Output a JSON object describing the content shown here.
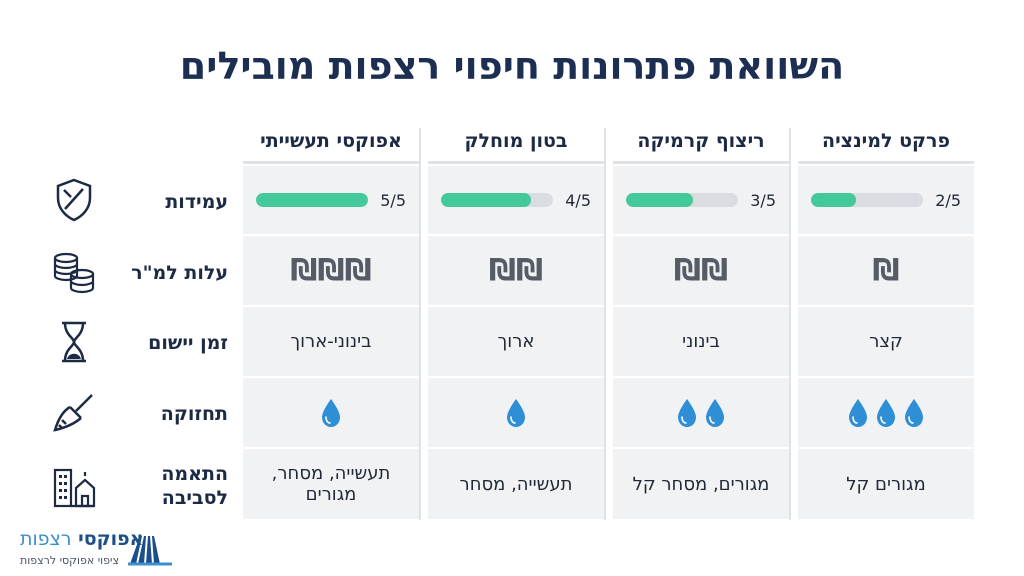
{
  "title": "השוואת פתרונות חיפוי רצפות מובילים",
  "rows": [
    {
      "label": "עמידות",
      "icon": "shield-icon"
    },
    {
      "label": "עלות למ\"ר",
      "icon": "coins-icon"
    },
    {
      "label": "זמן יישום",
      "icon": "hourglass-icon"
    },
    {
      "label": "תחזוקה",
      "icon": "broom-icon"
    },
    {
      "label_line1": "התאמה",
      "label_line2": "לסביבה",
      "icon": "buildings-icon"
    }
  ],
  "columns": [
    {
      "name": "אפוקסי תעשייתי",
      "durability": {
        "label": "5/5",
        "fraction": 1.0
      },
      "cost_symbols": "₪₪₪",
      "install_time": "בינוני-ארוך",
      "maintenance_drops": 1,
      "suitability_line1": "תעשייה, מסחר,",
      "suitability_line2": "מגורים"
    },
    {
      "name": "בטון מוחלק",
      "durability": {
        "label": "4/5",
        "fraction": 0.8
      },
      "cost_symbols": "₪₪",
      "install_time": "ארוך",
      "maintenance_drops": 1,
      "suitability_line1": "תעשייה, מסחר",
      "suitability_line2": ""
    },
    {
      "name": "ריצוף קרמיקה",
      "durability": {
        "label": "3/5",
        "fraction": 0.6
      },
      "cost_symbols": "₪₪",
      "install_time": "בינוני",
      "maintenance_drops": 2,
      "suitability_line1": "מגורים, מסחר קל",
      "suitability_line2": ""
    },
    {
      "name": "פרקט למינציה",
      "durability": {
        "label": "2/5",
        "fraction": 0.4
      },
      "cost_symbols": "₪",
      "install_time": "קצר",
      "maintenance_drops": 3,
      "suitability_line1": "מגורים קל",
      "suitability_line2": ""
    }
  ],
  "logo": {
    "name_bold": "אפוקסי",
    "name_light": "רצפות",
    "tagline": "ציפוי אפוקסי לרצפות"
  },
  "colors": {
    "accent": "#43c99a",
    "drop": "#2f8fd6",
    "title": "#1c2e52"
  }
}
